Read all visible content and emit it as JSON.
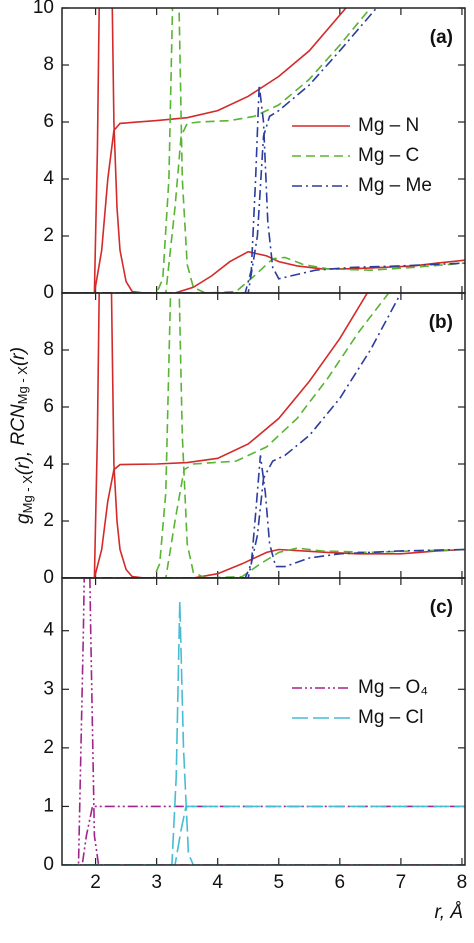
{
  "chart_data": [
    {
      "type": "line",
      "panel_label": "(a)",
      "xlim": [
        1.45,
        8.05
      ],
      "ylim": [
        0,
        10
      ],
      "yticks": [
        0,
        2,
        4,
        6,
        8,
        10
      ],
      "legend": "right",
      "series": [
        {
          "name": "Mg – N",
          "color": "#d42a2a",
          "dash": "solid",
          "g": {
            "x": [
              1.45,
              1.98,
              2.03,
              2.07,
              2.12,
              2.2,
              2.26,
              2.3,
              2.35,
              2.4,
              2.5,
              2.6,
              2.8,
              3.3,
              3.6,
              3.9,
              4.2,
              4.5,
              4.8,
              5.0,
              5.3,
              5.7,
              6.2,
              6.7,
              7.2,
              7.6,
              8.05
            ],
            "y": [
              0,
              0,
              5,
              12,
              25,
              25,
              12,
              6,
              3,
              1.5,
              0.4,
              0.05,
              0,
              0,
              0.2,
              0.6,
              1.1,
              1.45,
              1.3,
              1.1,
              0.95,
              0.85,
              0.85,
              0.9,
              0.95,
              1.05,
              1.15
            ]
          },
          "rcn": {
            "x": [
              1.45,
              1.98,
              2.1,
              2.2,
              2.3,
              2.4,
              3.0,
              3.5,
              4.0,
              4.5,
              5.0,
              5.5,
              6.1,
              6.5
            ],
            "y": [
              0,
              0,
              1.5,
              4,
              5.7,
              5.95,
              6.05,
              6.15,
              6.4,
              6.9,
              7.6,
              8.5,
              10,
              11
            ]
          }
        },
        {
          "name": "Mg – C",
          "color": "#58b432",
          "dash": "dashed",
          "g": {
            "x": [
              1.45,
              3.0,
              3.1,
              3.2,
              3.28,
              3.35,
              3.42,
              3.5,
              3.6,
              3.8,
              4.3,
              4.6,
              4.9,
              5.1,
              5.4,
              5.8,
              6.5,
              7.2,
              8.05
            ],
            "y": [
              0,
              0,
              0.5,
              4,
              12,
              12,
              4,
              1,
              0.2,
              0,
              0.05,
              0.6,
              1.2,
              1.25,
              1.0,
              0.85,
              0.8,
              0.9,
              1.05
            ]
          },
          "rcn": {
            "x": [
              1.45,
              3.15,
              3.3,
              3.4,
              3.5,
              3.7,
              4.2,
              4.6,
              5.0,
              5.5,
              6.0,
              6.5,
              6.8
            ],
            "y": [
              0,
              0,
              3,
              5.5,
              5.95,
              6.0,
              6.05,
              6.2,
              6.6,
              7.5,
              8.7,
              10,
              11
            ]
          }
        },
        {
          "name": "Mg – Me",
          "color": "#2c3c9c",
          "dash": "dashdot",
          "g": {
            "x": [
              1.45,
              4.45,
              4.55,
              4.62,
              4.68,
              4.75,
              4.82,
              4.9,
              5.0,
              5.2,
              5.6,
              6.2,
              7.0,
              8.05
            ],
            "y": [
              0,
              0,
              0.8,
              4,
              7.3,
              6,
              2.5,
              0.9,
              0.5,
              0.6,
              0.8,
              0.9,
              0.95,
              1.05
            ]
          },
          "rcn": {
            "x": [
              1.45,
              4.5,
              4.65,
              4.75,
              4.85,
              5.0,
              5.5,
              6.0,
              6.6,
              7.0
            ],
            "y": [
              0,
              0,
              2,
              5.5,
              6.2,
              6.4,
              7.3,
              8.5,
              10,
              11
            ]
          }
        }
      ]
    },
    {
      "type": "line",
      "panel_label": "(b)",
      "xlim": [
        1.45,
        8.05
      ],
      "ylim": [
        0,
        10
      ],
      "yticks": [
        0,
        2,
        4,
        6,
        8
      ],
      "y_label": [
        "g",
        "Mg - X",
        "(r), ",
        "RCN",
        "Mg - X",
        "(r)"
      ],
      "series": [
        {
          "color": "#d42a2a",
          "dash": "solid",
          "g": {
            "x": [
              1.45,
              1.98,
              2.03,
              2.07,
              2.12,
              2.2,
              2.26,
              2.3,
              2.35,
              2.4,
              2.5,
              2.6,
              2.8,
              3.6,
              4.0,
              4.4,
              4.8,
              5.0,
              5.4,
              5.8,
              6.3,
              7.0,
              7.6,
              8.05
            ],
            "y": [
              0,
              0,
              5,
              12,
              25,
              25,
              10,
              4,
              2,
              1,
              0.3,
              0.05,
              0,
              0,
              0.15,
              0.5,
              0.9,
              1.0,
              0.95,
              0.9,
              0.85,
              0.85,
              0.95,
              1.0
            ]
          },
          "rcn": {
            "x": [
              1.45,
              1.98,
              2.1,
              2.2,
              2.3,
              2.4,
              3.0,
              3.5,
              4.0,
              4.5,
              5.0,
              5.5,
              6.0,
              6.45,
              6.8
            ],
            "y": [
              0,
              0,
              1,
              2.7,
              3.8,
              3.98,
              4.0,
              4.05,
              4.2,
              4.7,
              5.6,
              6.9,
              8.4,
              10,
              11
            ]
          }
        },
        {
          "color": "#58b432",
          "dash": "dashed",
          "g": {
            "x": [
              1.45,
              2.95,
              3.05,
              3.15,
              3.25,
              3.35,
              3.42,
              3.5,
              3.6,
              3.8,
              4.4,
              4.7,
              5.0,
              5.3,
              5.7,
              6.5,
              7.2,
              8.05
            ],
            "y": [
              0,
              0,
              0.5,
              3,
              12,
              12,
              5,
              1.2,
              0.2,
              0,
              0.05,
              0.5,
              0.9,
              1.05,
              0.95,
              0.9,
              0.95,
              1.0
            ]
          },
          "rcn": {
            "x": [
              1.45,
              3.15,
              3.3,
              3.45,
              3.6,
              4.3,
              4.8,
              5.3,
              5.8,
              6.3,
              6.8,
              7.1
            ],
            "y": [
              0,
              0,
              2,
              3.8,
              4.0,
              4.1,
              4.6,
              5.6,
              7.0,
              8.6,
              10,
              11
            ]
          }
        },
        {
          "color": "#2c3c9c",
          "dash": "dashdot",
          "g": {
            "x": [
              1.45,
              4.45,
              4.55,
              4.63,
              4.7,
              4.78,
              4.85,
              4.95,
              5.1,
              5.5,
              6.0,
              7.0,
              8.05
            ],
            "y": [
              0,
              0,
              0.5,
              2.5,
              4.3,
              3.0,
              1.2,
              0.4,
              0.4,
              0.7,
              0.85,
              0.95,
              1.0
            ]
          },
          "rcn": {
            "x": [
              1.45,
              4.5,
              4.65,
              4.75,
              4.9,
              5.1,
              5.5,
              6.0,
              6.5,
              7.0,
              7.2
            ],
            "y": [
              0,
              0,
              1.5,
              3.5,
              4.1,
              4.3,
              5.0,
              6.3,
              8.0,
              10,
              11
            ]
          }
        }
      ]
    },
    {
      "type": "line",
      "panel_label": "(c)",
      "xlim": [
        1.45,
        8.05
      ],
      "ylim": [
        0,
        4.9
      ],
      "yticks": [
        0,
        1,
        2,
        3,
        4
      ],
      "xticks": [
        2,
        3,
        4,
        5,
        6,
        7,
        8
      ],
      "x_label": "r, Å",
      "legend": "right",
      "series": [
        {
          "name": "Mg – O₄",
          "color": "#a0248c",
          "dash": "dashdotdot",
          "g": {
            "x": [
              1.45,
              1.72,
              1.8,
              1.86,
              1.92,
              1.98,
              2.05,
              8.05
            ],
            "y": [
              0,
              0,
              4,
              8,
              4,
              0.5,
              0,
              0
            ]
          },
          "rcn": {
            "x": [
              1.45,
              1.78,
              1.85,
              1.95,
              8.05
            ],
            "y": [
              0,
              0,
              0.5,
              1,
              1
            ]
          }
        },
        {
          "name": "Mg – Cl",
          "color": "#48bcd4",
          "dash": "longdash",
          "g": {
            "x": [
              1.45,
              3.25,
              3.32,
              3.38,
              3.44,
              3.52,
              3.6,
              8.05
            ],
            "y": [
              0,
              0,
              1.5,
              4.5,
              2,
              0.2,
              0,
              0
            ]
          },
          "rcn": {
            "x": [
              1.45,
              3.3,
              3.4,
              3.48,
              8.05
            ],
            "y": [
              0,
              0,
              0.6,
              1,
              1
            ]
          }
        }
      ]
    }
  ]
}
